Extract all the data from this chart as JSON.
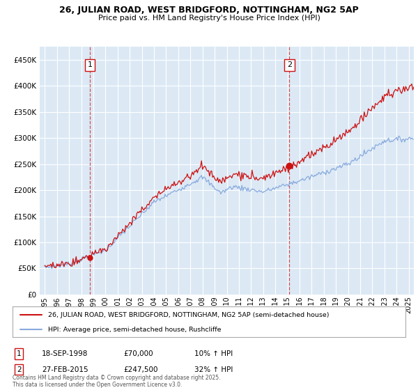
{
  "title_line1": "26, JULIAN ROAD, WEST BRIDGFORD, NOTTINGHAM, NG2 5AP",
  "title_line2": "Price paid vs. HM Land Registry's House Price Index (HPI)",
  "fig_bg_color": "#ffffff",
  "plot_bg_color": "#dce9f5",
  "grid_color": "#ffffff",
  "red_color": "#cc1111",
  "blue_color": "#88aadd",
  "ylim": [
    0,
    475000
  ],
  "yticks": [
    0,
    50000,
    100000,
    150000,
    200000,
    250000,
    300000,
    350000,
    400000,
    450000
  ],
  "ytick_labels": [
    "£0",
    "£50K",
    "£100K",
    "£150K",
    "£200K",
    "£250K",
    "£300K",
    "£350K",
    "£400K",
    "£450K"
  ],
  "xlim_start": 1994.58,
  "xlim_end": 2025.42,
  "xticks": [
    1995,
    1996,
    1997,
    1998,
    1999,
    2000,
    2001,
    2002,
    2003,
    2004,
    2005,
    2006,
    2007,
    2008,
    2009,
    2010,
    2011,
    2012,
    2013,
    2014,
    2015,
    2016,
    2017,
    2018,
    2019,
    2020,
    2021,
    2022,
    2023,
    2024,
    2025
  ],
  "sale1_x": 1998.72,
  "sale1_y": 70000,
  "sale2_x": 2015.16,
  "sale2_y": 247500,
  "legend_line1": "26, JULIAN ROAD, WEST BRIDGFORD, NOTTINGHAM, NG2 5AP (semi-detached house)",
  "legend_line2": "HPI: Average price, semi-detached house, Rushcliffe",
  "annotation1_date": "18-SEP-1998",
  "annotation1_price": "£70,000",
  "annotation1_hpi": "10% ↑ HPI",
  "annotation2_date": "27-FEB-2015",
  "annotation2_price": "£247,500",
  "annotation2_hpi": "32% ↑ HPI",
  "footer": "Contains HM Land Registry data © Crown copyright and database right 2025.\nThis data is licensed under the Open Government Licence v3.0."
}
